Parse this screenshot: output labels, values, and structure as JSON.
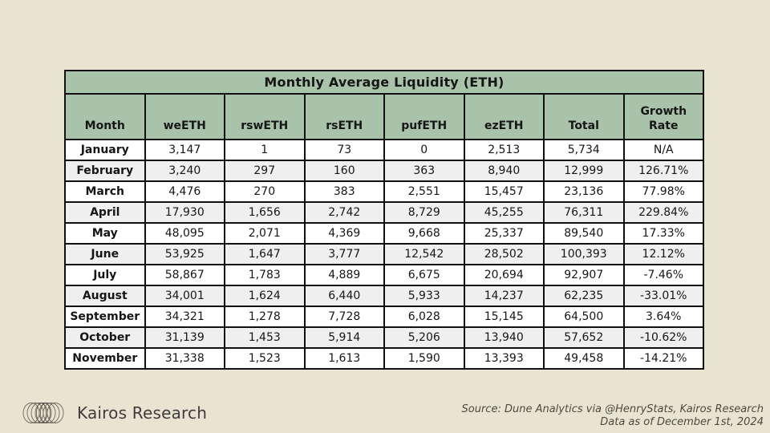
{
  "title": "Monthly Average Liquidity (ETH)",
  "table": {
    "columns": [
      "Month",
      "weETH",
      "rswETH",
      "rsETH",
      "pufETH",
      "ezETH",
      "Total",
      "Growth Rate"
    ],
    "rows": [
      [
        "January",
        "3,147",
        "1",
        "73",
        "0",
        "2,513",
        "5,734",
        "N/A"
      ],
      [
        "February",
        "3,240",
        "297",
        "160",
        "363",
        "8,940",
        "12,999",
        "126.71%"
      ],
      [
        "March",
        "4,476",
        "270",
        "383",
        "2,551",
        "15,457",
        "23,136",
        "77.98%"
      ],
      [
        "April",
        "17,930",
        "1,656",
        "2,742",
        "8,729",
        "45,255",
        "76,311",
        "229.84%"
      ],
      [
        "May",
        "48,095",
        "2,071",
        "4,369",
        "9,668",
        "25,337",
        "89,540",
        "17.33%"
      ],
      [
        "June",
        "53,925",
        "1,647",
        "3,777",
        "12,542",
        "28,502",
        "100,393",
        "12.12%"
      ],
      [
        "July",
        "58,867",
        "1,783",
        "4,889",
        "6,675",
        "20,694",
        "92,907",
        "-7.46%"
      ],
      [
        "August",
        "34,001",
        "1,624",
        "6,440",
        "5,933",
        "14,237",
        "62,235",
        "-33.01%"
      ],
      [
        "September",
        "34,321",
        "1,278",
        "7,728",
        "6,028",
        "15,145",
        "64,500",
        "3.64%"
      ],
      [
        "October",
        "31,139",
        "1,453",
        "5,914",
        "5,206",
        "13,940",
        "57,652",
        "-10.62%"
      ],
      [
        "November",
        "31,338",
        "1,523",
        "1,613",
        "1,590",
        "13,393",
        "49,458",
        "-14.21%"
      ]
    ]
  },
  "chart_data": {
    "type": "table",
    "title": "Monthly Average Liquidity (ETH)",
    "categories": [
      "January",
      "February",
      "March",
      "April",
      "May",
      "June",
      "July",
      "August",
      "September",
      "October",
      "November"
    ],
    "series": [
      {
        "name": "weETH",
        "values": [
          3147,
          3240,
          4476,
          17930,
          48095,
          53925,
          58867,
          34001,
          34321,
          31139,
          31338
        ]
      },
      {
        "name": "rswETH",
        "values": [
          1,
          297,
          270,
          1656,
          2071,
          1647,
          1783,
          1624,
          1278,
          1453,
          1523
        ]
      },
      {
        "name": "rsETH",
        "values": [
          73,
          160,
          383,
          2742,
          4369,
          3777,
          4889,
          6440,
          7728,
          5914,
          1613
        ]
      },
      {
        "name": "pufETH",
        "values": [
          0,
          363,
          2551,
          8729,
          9668,
          12542,
          6675,
          5933,
          6028,
          5206,
          1590
        ]
      },
      {
        "name": "ezETH",
        "values": [
          2513,
          8940,
          15457,
          45255,
          25337,
          28502,
          20694,
          14237,
          15145,
          13940,
          13393
        ]
      },
      {
        "name": "Total",
        "values": [
          5734,
          12999,
          23136,
          76311,
          89540,
          100393,
          92907,
          62235,
          64500,
          57652,
          49458
        ]
      },
      {
        "name": "Growth Rate (%)",
        "values": [
          null,
          126.71,
          77.98,
          229.84,
          17.33,
          12.12,
          -7.46,
          -33.01,
          3.64,
          -10.62,
          -14.21
        ]
      }
    ]
  },
  "footer": {
    "brand": "Kairos Research",
    "logo_icon": "overlapping-ellipses-logo",
    "source_line1": "Source: Dune Analytics via @HenryStats, Kairos Research",
    "source_line2": "Data as of December 1st, 2024"
  },
  "colors": {
    "background": "#e9e3d1",
    "header_green": "#a9c3aa",
    "row_alt": "#efefef",
    "border": "#101010",
    "text": "#161616",
    "footer_text": "#3c3c3c",
    "source_text": "#4c4a40"
  }
}
